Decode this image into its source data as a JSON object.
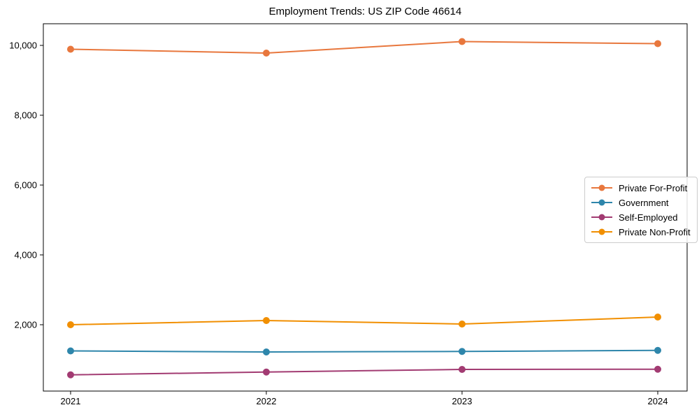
{
  "figure": {
    "background": "#ffffff",
    "frame_color": "#000000"
  },
  "chart_data": {
    "type": "line",
    "title": "Employment Trends: US ZIP Code 46614",
    "xlabel": "",
    "ylabel": "",
    "x": [
      2021,
      2022,
      2023,
      2024
    ],
    "x_tick_labels": [
      "2021",
      "2022",
      "2023",
      "2024"
    ],
    "yticks": [
      2000,
      4000,
      6000,
      8000,
      10000
    ],
    "ytick_labels": [
      "2,000",
      "4,000",
      "6,000",
      "8,000",
      "10,000"
    ],
    "ylim": [
      100,
      10620
    ],
    "grid": false,
    "legend_position": "center-right",
    "marker": "circle",
    "series": [
      {
        "name": "Private For-Profit",
        "color": "#E8773D",
        "values": [
          9890,
          9780,
          10110,
          10050
        ]
      },
      {
        "name": "Government",
        "color": "#2E86AB",
        "values": [
          1250,
          1220,
          1235,
          1265
        ]
      },
      {
        "name": "Self-Employed",
        "color": "#A23B72",
        "values": [
          565,
          645,
          720,
          725
        ]
      },
      {
        "name": "Private Non-Profit",
        "color": "#F18F01",
        "values": [
          2000,
          2120,
          2020,
          2220
        ]
      }
    ]
  }
}
